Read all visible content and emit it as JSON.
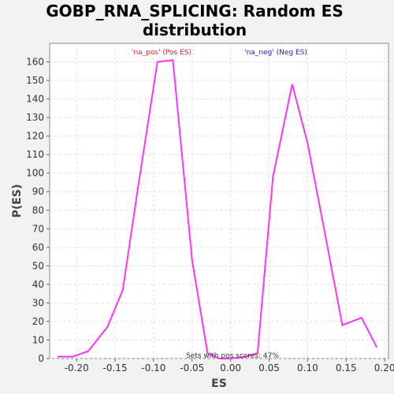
{
  "title_lines": [
    "GOBP_RNA_SPLICING: Random ES",
    "distribution"
  ],
  "chart_data": {
    "type": "line",
    "title": "GOBP_RNA_SPLICING: Random ES distribution",
    "xlabel": "ES",
    "ylabel": "P(ES)",
    "xlim": [
      -0.235,
      0.205
    ],
    "ylim": [
      0,
      170
    ],
    "xticks": [
      -0.2,
      -0.15,
      -0.1,
      -0.05,
      0.0,
      0.05,
      0.1,
      0.15,
      0.2
    ],
    "xtick_labels": [
      "-0.20",
      "-0.15",
      "-0.10",
      "-0.05",
      "0.00",
      "0.05",
      "0.10",
      "0.15",
      "0.20"
    ],
    "yticks": [
      0,
      10,
      20,
      30,
      40,
      50,
      60,
      70,
      80,
      90,
      100,
      110,
      120,
      130,
      140,
      150,
      160
    ],
    "grid": true,
    "line_color": "#ff33ff",
    "series": [
      {
        "x": [
          -0.225,
          -0.205,
          -0.185,
          -0.16,
          -0.14,
          -0.12,
          -0.095,
          -0.075,
          -0.05,
          -0.03,
          -0.015,
          0.0,
          0.02,
          0.035,
          0.055,
          0.08,
          0.1,
          0.125,
          0.145,
          0.17,
          0.19
        ],
        "y": [
          1,
          1,
          4,
          17,
          37,
          93,
          160,
          161,
          53,
          3,
          0,
          0,
          1,
          3,
          98,
          148,
          116,
          62,
          18,
          22,
          6
        ]
      }
    ],
    "annotations": [
      {
        "text": "'na_pos' (Pos ES)",
        "color": "#e02020"
      },
      {
        "text": "'na_neg' (Neg ES)",
        "color": "#2020c0"
      },
      {
        "text": "Sets with pos scores: 47%",
        "color": "#333333"
      }
    ]
  }
}
